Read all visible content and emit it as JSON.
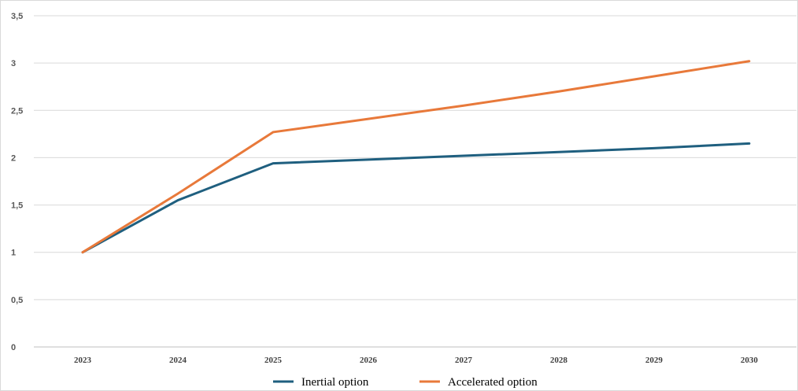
{
  "chart_data": {
    "type": "line",
    "title": "",
    "xlabel": "",
    "ylabel": "",
    "categories": [
      "2023",
      "2024",
      "2025",
      "2026",
      "2027",
      "2028",
      "2029",
      "2030"
    ],
    "y_ticks": [
      "0",
      "0,5",
      "1",
      "1,5",
      "2",
      "2,5",
      "3",
      "3,5"
    ],
    "ylim": [
      0,
      3.5
    ],
    "grid": true,
    "legend_position": "bottom",
    "series": [
      {
        "name": "Inertial option",
        "color": "#1f5f7f",
        "values": [
          1.0,
          1.55,
          1.94,
          1.98,
          2.02,
          2.06,
          2.1,
          2.15
        ]
      },
      {
        "name": "Accelerated option",
        "color": "#e8793a",
        "values": [
          1.0,
          1.62,
          2.27,
          2.41,
          2.55,
          2.7,
          2.86,
          3.02
        ]
      }
    ]
  }
}
